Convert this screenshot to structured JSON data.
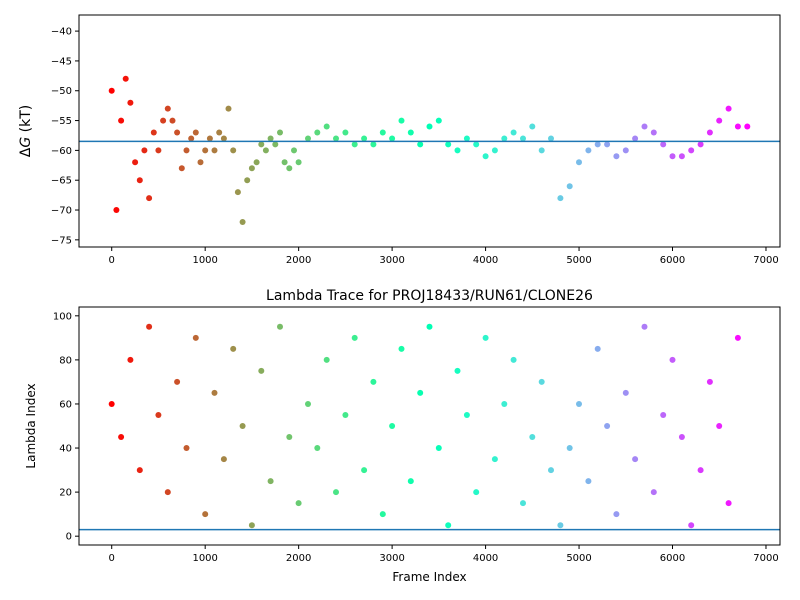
{
  "chart_data": [
    {
      "type": "scatter",
      "title": "",
      "xlabel": "",
      "ylabel": "ΔG (kT)",
      "ylabel_symbol": "Δ",
      "ylabel_var": "G",
      "ylabel_unit": "(kT)",
      "xlim": [
        -350,
        7150
      ],
      "ylim": [
        -76.2,
        -37.3
      ],
      "xticks": [
        0,
        1000,
        2000,
        3000,
        4000,
        5000,
        6000,
        7000
      ],
      "yticks": [
        -40,
        -45,
        -50,
        -55,
        -60,
        -65,
        -70,
        -75
      ],
      "hline": -58.5,
      "hline_color": "#1f77b4",
      "colormap": "rainbow",
      "color_range": [
        0,
        6800
      ],
      "grid": false,
      "series": [
        {
          "x": [
            0,
            50,
            100,
            150,
            200,
            250,
            300,
            350,
            400,
            450,
            500,
            550,
            600,
            650,
            700,
            750,
            800,
            850,
            900,
            950,
            1000,
            1050,
            1100,
            1150,
            1200,
            1250,
            1300,
            1350,
            1400,
            1450,
            1500,
            1550,
            1600,
            1650,
            1700,
            1750,
            1800,
            1850,
            1900,
            1950,
            2000,
            2100,
            2200,
            2300,
            2400,
            2500,
            2600,
            2700,
            2800,
            2900,
            3000,
            3100,
            3200,
            3300,
            3400,
            3500,
            3600,
            3700,
            3800,
            3900,
            4000,
            4100,
            4200,
            4300,
            4400,
            4500,
            4600,
            4700,
            4800,
            4900,
            5000,
            5100,
            5200,
            5300,
            5400,
            5500,
            5600,
            5700,
            5800,
            5900,
            6000,
            6100,
            6200,
            6300,
            6400,
            6500,
            6600,
            6700,
            6800
          ],
          "y": [
            -50,
            -70,
            -55,
            -48,
            -52,
            -62,
            -65,
            -60,
            -68,
            -57,
            -60,
            -55,
            -53,
            -55,
            -57,
            -63,
            -60,
            -58,
            -57,
            -62,
            -60,
            -58,
            -60,
            -57,
            -58,
            -53,
            -60,
            -67,
            -72,
            -65,
            -63,
            -62,
            -59,
            -60,
            -58,
            -59,
            -57,
            -62,
            -63,
            -60,
            -62,
            -58,
            -57,
            -56,
            -58,
            -57,
            -59,
            -58,
            -59,
            -57,
            -58,
            -55,
            -57,
            -59,
            -56,
            -55,
            -59,
            -60,
            -58,
            -59,
            -61,
            -60,
            -58,
            -57,
            -58,
            -56,
            -60,
            -58,
            -68,
            -66,
            -62,
            -60,
            -59,
            -59,
            -61,
            -60,
            -58,
            -56,
            -57,
            -59,
            -61,
            -61,
            -60,
            -59,
            -57,
            -55,
            -53,
            -56,
            -56
          ]
        }
      ]
    },
    {
      "type": "scatter",
      "title": "Lambda Trace for PROJ18433/RUN61/CLONE26",
      "xlabel": "Frame Index",
      "ylabel": "Lambda Index",
      "xlim": [
        -350,
        7150
      ],
      "ylim": [
        -4,
        104
      ],
      "xticks": [
        0,
        1000,
        2000,
        3000,
        4000,
        5000,
        6000,
        7000
      ],
      "yticks": [
        0,
        20,
        40,
        60,
        80,
        100
      ],
      "hline": 3,
      "hline_color": "#1f77b4",
      "colormap": "rainbow",
      "color_range": [
        0,
        6800
      ],
      "grid": false,
      "series": [
        {
          "x": [
            0,
            100,
            200,
            300,
            400,
            500,
            600,
            700,
            800,
            900,
            1000,
            1100,
            1200,
            1300,
            1400,
            1500,
            1600,
            1700,
            1800,
            1900,
            2000,
            2100,
            2200,
            2300,
            2400,
            2500,
            2600,
            2700,
            2800,
            2900,
            3000,
            3100,
            3200,
            3300,
            3400,
            3500,
            3600,
            3700,
            3800,
            3900,
            4000,
            4100,
            4200,
            4300,
            4400,
            4500,
            4600,
            4700,
            4800,
            4900,
            5000,
            5100,
            5200,
            5300,
            5400,
            5500,
            5600,
            5700,
            5800,
            5900,
            6000,
            6100,
            6200,
            6300,
            6400,
            6500,
            6600,
            6700
          ],
          "y": [
            60,
            45,
            80,
            30,
            95,
            55,
            20,
            70,
            40,
            90,
            10,
            65,
            35,
            85,
            50,
            5,
            75,
            25,
            95,
            45,
            15,
            60,
            40,
            80,
            20,
            55,
            90,
            30,
            70,
            10,
            50,
            85,
            25,
            65,
            95,
            40,
            5,
            75,
            55,
            20,
            90,
            35,
            60,
            80,
            15,
            45,
            70,
            30,
            5,
            40,
            60,
            25,
            85,
            50,
            10,
            65,
            35,
            95,
            20,
            55,
            80,
            45,
            5,
            30,
            70,
            50,
            15,
            90
          ]
        }
      ]
    }
  ]
}
